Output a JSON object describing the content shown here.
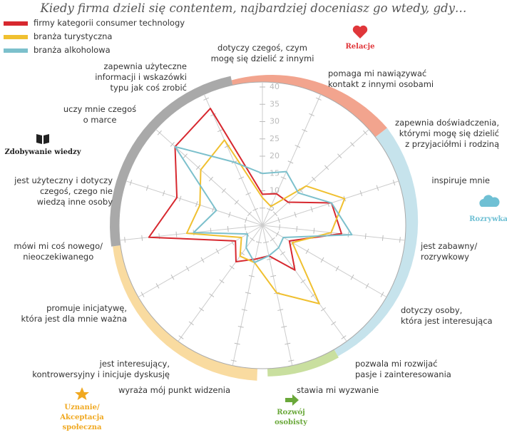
{
  "chart_data": {
    "type": "radar",
    "title": "Kiedy firma dzieli się contentem, najbardziej doceniasz go wtedy, gdy…",
    "categories": [
      "dotyczy czegoś, czym\nmogę się dzielić z innymi",
      "pomaga mi nawiązywać\nkontakt z innymi osobami",
      "zapewnia doświadczenia,\nktórymi mogę się dzielić\nz przyjaciółmi i rodziną",
      "inspiruje mnie",
      "jest zabawny/\nrozrywkowy",
      "dotyczy osoby,\nktóra jest interesująca",
      "pozwala mi rozwijać\npasje i zainteresowania",
      "stawia mi wyzwanie",
      "wyraża mój punkt widzenia",
      "jest interesujący,\nkontrowersyjny i inicjuje dyskusję",
      "promuje inicjatywę,\nktóra jest dla mnie ważna",
      "mówi mi coś nowego/\nnieoczekiwanego",
      "jest użyteczny i dotyczy\nczegoś, czego nie\nwiedzą inne osoby",
      "uczy mnie czegoś\no marce",
      "zapewnia użyteczne\ninformacji i wskazówki\ntypu jak coś zrobić"
    ],
    "series": [
      {
        "name": "firmy kategorii consumer technology",
        "color": "#d7282f",
        "values": [
          9,
          10,
          10,
          21,
          23,
          9,
          16,
          9,
          10,
          13,
          9,
          33,
          26,
          34,
          37
        ]
      },
      {
        "name": "branża turystyczna",
        "color": "#f0c030",
        "values": [
          8,
          6,
          17,
          25,
          20,
          10,
          28,
          20,
          11,
          11,
          7,
          22,
          19,
          24,
          27
        ]
      },
      {
        "name": "branża alkoholowa",
        "color": "#7cc0cc",
        "values": [
          15,
          17,
          14,
          21,
          26,
          7,
          8,
          9,
          11,
          8,
          5,
          20,
          14,
          34,
          20
        ]
      }
    ],
    "ylim": [
      0,
      40
    ],
    "yticks": [
      5,
      10,
      15,
      20,
      25,
      30,
      35,
      40
    ],
    "groups": [
      {
        "name": "Relacje",
        "color": "#e0363a"
      },
      {
        "name": "Rozrywka",
        "color": "#6fc0d4"
      },
      {
        "name": "Rozwój\nosobisty",
        "color": "#6aa83a"
      },
      {
        "name": "Uznanie/\nAkceptacja\nspołeczna",
        "color": "#f0a820"
      },
      {
        "name": "Zdobywanie wiedzy",
        "color": "#222222"
      }
    ]
  }
}
